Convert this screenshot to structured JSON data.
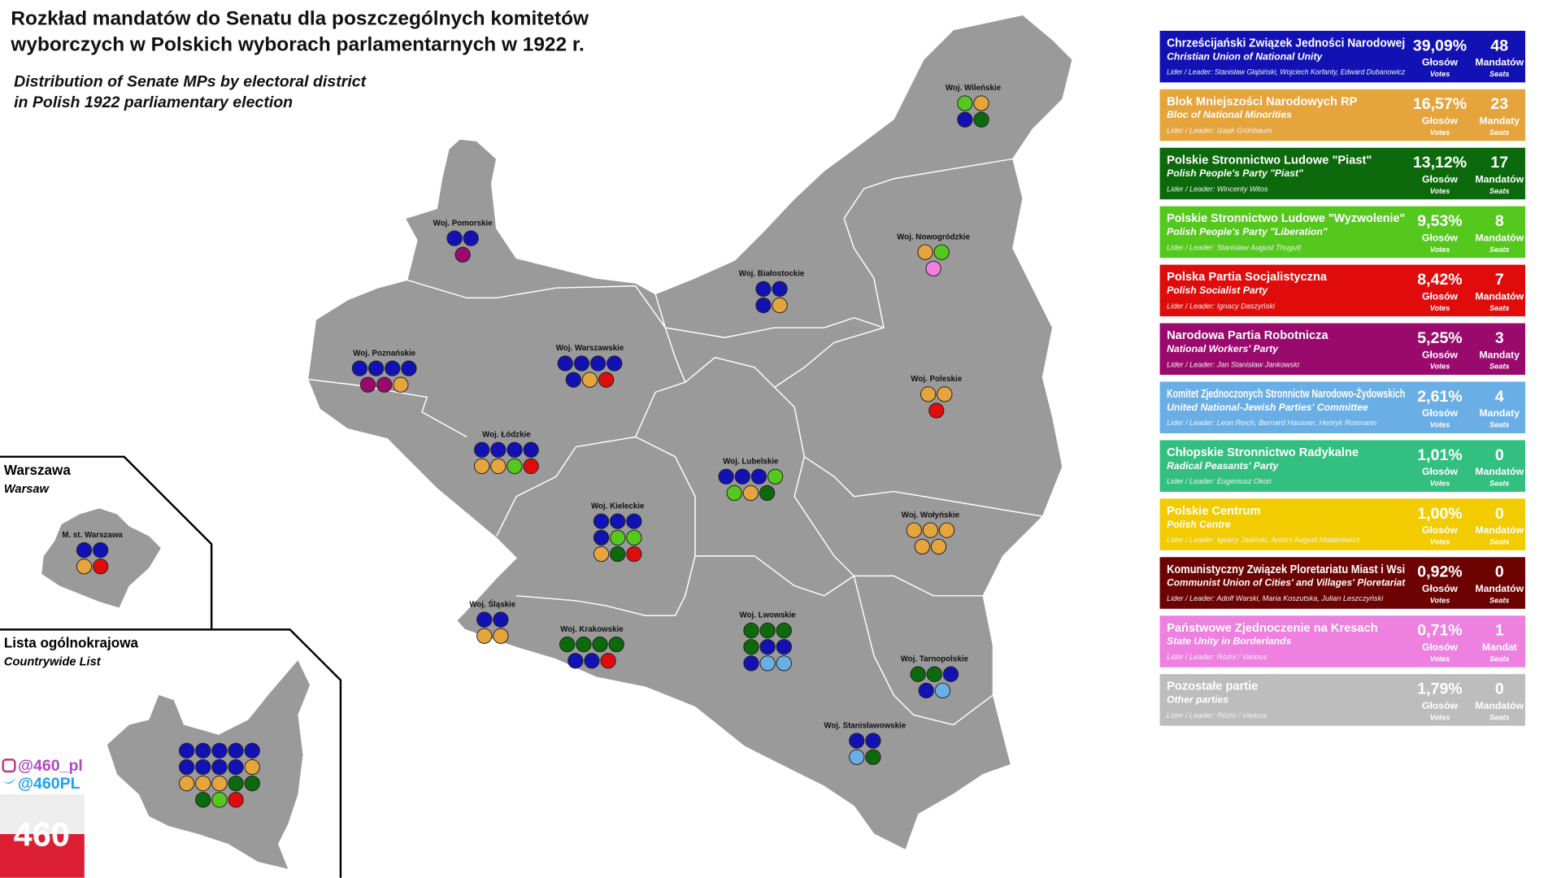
{
  "header": {
    "title_line1": "Rozkład mandatów do Senatu dla poszczególnych komitetów",
    "title_line2": "wyborczych w Polskich wyborach parlamentarnych w 1922 r.",
    "subtitle_line1": "Distribution of Senate MPs by electoral district",
    "subtitle_line2": "in Polish 1922 parliamentary election"
  },
  "parties": [
    {
      "name": "Chrześcijański Związek Jedności Narodowej",
      "english": "Christian Union of National Unity",
      "leader": "Lider / Leader: Stanisław Głąbiński, Wojciech Korfanty, Edward Dubanowicz",
      "percent": "39,09%",
      "votes_label": "Głosów",
      "votes_sub": "Votes",
      "seats": 48,
      "seats_label": "Mandatów",
      "seats_sub": "Seats",
      "color": "#1212b4"
    },
    {
      "name": "Blok Mniejszości Narodowych RP",
      "english": "Bloc of National Minorities",
      "leader": "Lider / Leader: Izaak Grünbaum",
      "percent": "16,57%",
      "votes_label": "Głosów",
      "votes_sub": "Votes",
      "seats": 23,
      "seats_label": "Mandaty",
      "seats_sub": "Seats",
      "color": "#e6a43c"
    },
    {
      "name": "Polskie Stronnictwo Ludowe \"Piast\"",
      "english": "Polish People's Party \"Piast\"",
      "leader": "Lider / Leader: Wincenty Witos",
      "percent": "13,12%",
      "votes_label": "Głosów",
      "votes_sub": "Votes",
      "seats": 17,
      "seats_label": "Mandatów",
      "seats_sub": "Seats",
      "color": "#0c690c"
    },
    {
      "name": "Polskie Stronnictwo Ludowe \"Wyzwolenie\"",
      "english": "Polish People's Party \"Liberation\"",
      "leader": "Lider / Leader: Stanisław August Thugutt",
      "percent": "9,53%",
      "votes_label": "Głosów",
      "votes_sub": "Votes",
      "seats": 8,
      "seats_label": "Mandatów",
      "seats_sub": "Seats",
      "color": "#55c81e"
    },
    {
      "name": "Polska Partia Socjalistyczna",
      "english": "Polish Socialist Party",
      "leader": "Lider / Leader: Ignacy Daszyński",
      "percent": "8,42%",
      "votes_label": "Głosów",
      "votes_sub": "Votes",
      "seats": 7,
      "seats_label": "Mandatów",
      "seats_sub": "Seats",
      "color": "#e00c0c"
    },
    {
      "name": "Narodowa Partia Robotnicza",
      "english": "National Workers' Party",
      "leader": "Lider / Leader: Jan Stanisław Jankowski",
      "percent": "5,25%",
      "votes_label": "Głosów",
      "votes_sub": "Votes",
      "seats": 3,
      "seats_label": "Mandaty",
      "seats_sub": "Seats",
      "color": "#9a0a6c"
    },
    {
      "name": "Komitet Zjednoczonych Stronnictw Narodowo-Żydowskich",
      "english": "United National-Jewish Parties' Committee",
      "leader": "Lider / Leader: Leon Reich, Bernard Hausner, Henryk Rosmarin",
      "percent": "2,61%",
      "votes_label": "Głosów",
      "votes_sub": "Votes",
      "seats": 4,
      "seats_label": "Mandaty",
      "seats_sub": "Seats",
      "color": "#6aaee6"
    },
    {
      "name": "Chłopskie Stronnictwo Radykalne",
      "english": "Radical Peasants' Party",
      "leader": "Lider / Leader: Eugeniusz Okoń",
      "percent": "1,01%",
      "votes_label": "Głosów",
      "votes_sub": "Votes",
      "seats": 0,
      "seats_label": "Mandatów",
      "seats_sub": "Seats",
      "color": "#32bf80"
    },
    {
      "name": "Polskie Centrum",
      "english": "Polish Centre",
      "leader": "Lider / Leader: Ignacy Jasiński, Antoni August Matakiewicz",
      "percent": "1,00%",
      "votes_label": "Głosów",
      "votes_sub": "Votes",
      "seats": 0,
      "seats_label": "Mandatów",
      "seats_sub": "Seats",
      "color": "#f2cc00"
    },
    {
      "name": "Komunistyczny Związek Ploretariatu Miast i Wsi",
      "english": "Communist Union of Cities' and Villages' Ploretariat",
      "leader": "Lider / Leader: Adolf Warski, Maria Koszutska, Julian Leszczyński",
      "percent": "0,92%",
      "votes_label": "Głosów",
      "votes_sub": "Votes",
      "seats": 0,
      "seats_label": "Mandatów",
      "seats_sub": "Seats",
      "color": "#6c0202"
    },
    {
      "name": "Państwowe Zjednoczenie na Kresach",
      "english": "State Unity in Borderlands",
      "leader": "Lider / Leader: Różni / Various",
      "percent": "0,71%",
      "votes_label": "Głosów",
      "votes_sub": "Votes",
      "seats": 1,
      "seats_label": "Mandat",
      "seats_sub": "Seats",
      "color": "#ee80e0"
    },
    {
      "name": "Pozostałe partie",
      "english": "Other parties",
      "leader": "Lider / Leader: Różni / Various",
      "percent": "1,79%",
      "votes_label": "Głosów",
      "votes_sub": "Votes",
      "seats": 0,
      "seats_label": "Mandatów",
      "seats_sub": "Seats",
      "color": "#bdbdbd"
    }
  ],
  "districts": [
    {
      "label": "Woj. Wileńskie",
      "seats": [
        [
          "#55c81e",
          "#e6a43c"
        ],
        [
          "#1212b4",
          "#0c690c"
        ]
      ]
    },
    {
      "label": "Woj. Pomorskie",
      "seats": [
        [
          "#1212b4",
          "#1212b4"
        ],
        [
          "#9a0a6c"
        ]
      ]
    },
    {
      "label": "Woj. Nowogródzkie",
      "seats": [
        [
          "#e6a43c",
          "#55c81e"
        ],
        [
          "#ee80e0"
        ]
      ]
    },
    {
      "label": "Woj. Białostockie",
      "seats": [
        [
          "#1212b4",
          "#1212b4"
        ],
        [
          "#1212b4",
          "#e6a43c"
        ]
      ]
    },
    {
      "label": "Woj. Poznańskie",
      "seats": [
        [
          "#1212b4",
          "#1212b4",
          "#1212b4",
          "#1212b4"
        ],
        [
          "#9a0a6c",
          "#9a0a6c",
          "#e6a43c"
        ]
      ]
    },
    {
      "label": "Woj. Warszawskie",
      "seats": [
        [
          "#1212b4",
          "#1212b4",
          "#1212b4",
          "#1212b4"
        ],
        [
          "#1212b4",
          "#e6a43c",
          "#e00c0c"
        ]
      ]
    },
    {
      "label": "Woj. Poleskie",
      "seats": [
        [
          "#e6a43c",
          "#e6a43c"
        ],
        [
          "#e00c0c"
        ]
      ]
    },
    {
      "label": "Woj. Łódzkie",
      "seats": [
        [
          "#1212b4",
          "#1212b4",
          "#1212b4",
          "#1212b4"
        ],
        [
          "#e6a43c",
          "#e6a43c",
          "#55c81e",
          "#e00c0c"
        ]
      ]
    },
    {
      "label": "Woj. Lubelskie",
      "seats": [
        [
          "#1212b4",
          "#1212b4",
          "#1212b4",
          "#55c81e"
        ],
        [
          "#55c81e",
          "#e6a43c",
          "#0c690c"
        ]
      ]
    },
    {
      "label": "Woj. Kieleckie",
      "seats": [
        [
          "#1212b4",
          "#1212b4",
          "#1212b4"
        ],
        [
          "#1212b4",
          "#55c81e",
          "#55c81e"
        ],
        [
          "#e6a43c",
          "#0c690c",
          "#e00c0c"
        ]
      ]
    },
    {
      "label": "Woj. Wołyńskie",
      "seats": [
        [
          "#e6a43c",
          "#e6a43c",
          "#e6a43c"
        ],
        [
          "#e6a43c",
          "#e6a43c"
        ]
      ]
    },
    {
      "label": "Woj. Śląskie",
      "seats": [
        [
          "#1212b4",
          "#1212b4"
        ],
        [
          "#e6a43c",
          "#e6a43c"
        ]
      ]
    },
    {
      "label": "Woj. Krakowskie",
      "seats": [
        [
          "#0c690c",
          "#0c690c",
          "#0c690c",
          "#0c690c"
        ],
        [
          "#1212b4",
          "#1212b4",
          "#e00c0c"
        ]
      ]
    },
    {
      "label": "Woj. Lwowskie",
      "seats": [
        [
          "#0c690c",
          "#0c690c",
          "#0c690c"
        ],
        [
          "#0c690c",
          "#1212b4",
          "#1212b4"
        ],
        [
          "#1212b4",
          "#6aaee6",
          "#6aaee6"
        ]
      ]
    },
    {
      "label": "Woj. Tarnopolskie",
      "seats": [
        [
          "#0c690c",
          "#0c690c",
          "#1212b4"
        ],
        [
          "#1212b4",
          "#6aaee6"
        ]
      ]
    },
    {
      "label": "Woj. Stanisławowskie",
      "seats": [
        [
          "#1212b4",
          "#1212b4"
        ],
        [
          "#6aaee6",
          "#0c690c"
        ]
      ]
    },
    {
      "label": "M. st. Warszawa",
      "seats": [
        [
          "#1212b4",
          "#1212b4"
        ],
        [
          "#e6a43c",
          "#e00c0c"
        ]
      ]
    }
  ],
  "warsaw_inset": {
    "title": "Warszawa",
    "subtitle": "Warsaw"
  },
  "countrywide": {
    "title": "Lista ogólnokrajowa",
    "subtitle": "Countrywide List",
    "seats": [
      [
        "#1212b4",
        "#1212b4",
        "#1212b4",
        "#1212b4",
        "#1212b4"
      ],
      [
        "#1212b4",
        "#1212b4",
        "#1212b4",
        "#1212b4",
        "#e6a43c"
      ],
      [
        "#e6a43c",
        "#e6a43c",
        "#e6a43c",
        "#0c690c",
        "#0c690c"
      ],
      [
        "#0c690c",
        "#55c81e",
        "#e00c0c"
      ]
    ]
  },
  "branding": {
    "instagram": "@460_pl",
    "twitter": "@460PL",
    "logo": "460"
  }
}
